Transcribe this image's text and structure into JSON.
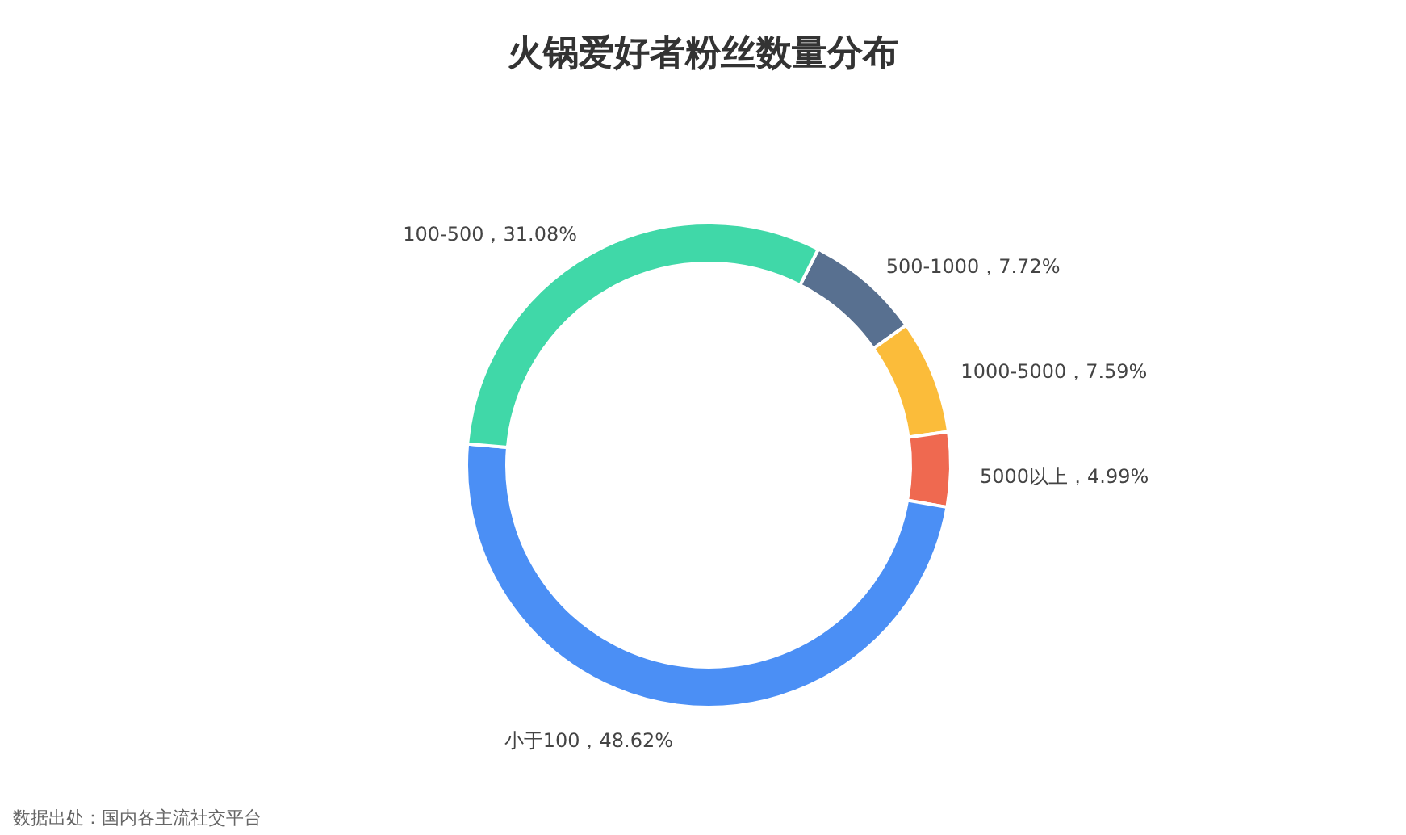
{
  "chart_data": {
    "type": "donut",
    "title": "火锅爱好者粉丝数量分布",
    "categories": [
      "500-1000",
      "1000-5000",
      "5000以上",
      "小于100",
      "100-500"
    ],
    "values": [
      7.72,
      7.59,
      4.99,
      48.62,
      31.08
    ],
    "colors": [
      "#587090",
      "#fbbc3a",
      "#ef6950",
      "#4b8ff5",
      "#40d8a8"
    ],
    "value_labels": [
      "7.72%",
      "7.59%",
      "4.99%",
      "48.62%",
      "31.08%"
    ],
    "annotations": [
      "数据出处：国内各主流社交平台"
    ]
  }
}
